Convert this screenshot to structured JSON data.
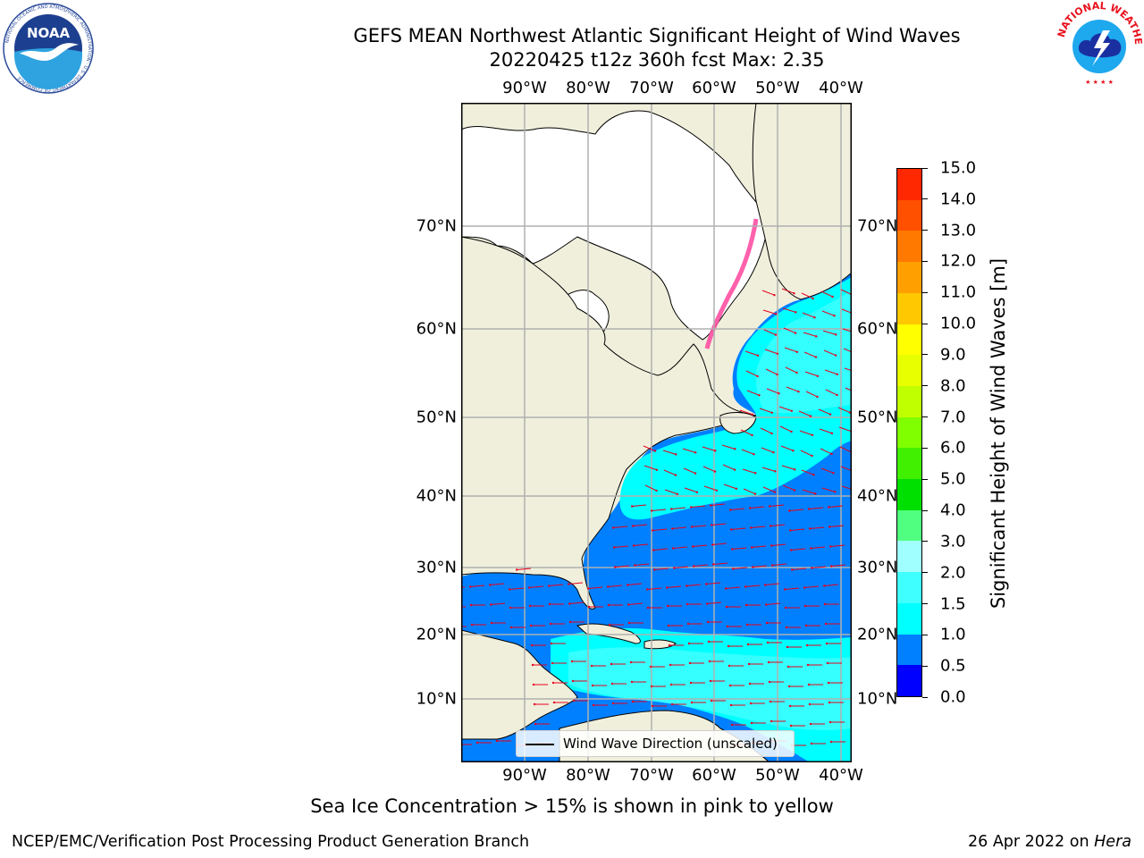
{
  "title": {
    "line1": "GEFS MEAN Northwest Atlantic Significant Height of Wind Waves",
    "line2": "20220425 t12z 360h fcst   Max: 2.35"
  },
  "longitude_labels": [
    "90°W",
    "80°W",
    "70°W",
    "60°W",
    "50°W",
    "40°W"
  ],
  "latitude_labels": [
    "70°N",
    "60°N",
    "50°N",
    "40°N",
    "30°N",
    "20°N",
    "10°N"
  ],
  "colorbar": {
    "label": "Significant Height of Wind Waves [m]",
    "tick_labels": [
      "0.0",
      "0.5",
      "1.0",
      "1.5",
      "2.0",
      "3.0",
      "4.0",
      "5.0",
      "6.0",
      "7.0",
      "8.0",
      "9.0",
      "10.0",
      "11.0",
      "12.0",
      "13.0",
      "14.0",
      "15.0"
    ],
    "colors": [
      "#0000ff",
      "#0080ff",
      "#00ffff",
      "#40ffff",
      "#a0ffff",
      "#50ff80",
      "#00e000",
      "#40f000",
      "#80ff00",
      "#c0ff00",
      "#e8ff00",
      "#ffff00",
      "#ffc800",
      "#ffa000",
      "#ff7800",
      "#ff5000",
      "#ff2800",
      "#ff0000"
    ]
  },
  "legend": {
    "label": "Wind Wave Direction (unscaled)"
  },
  "ice_note": "Sea Ice Concentration > 15% is shown in pink to yellow",
  "footer": {
    "left": "NCEP/EMC/Verification Post Processing Product Generation Branch",
    "right_date": "26 Apr 2022 on",
    "right_host": "Hera"
  },
  "logos": {
    "noaa": "NOAA",
    "noaa_ring": "NATIONAL OCEANIC AND ATMOSPHERIC ADMINISTRATION · U.S. DEPARTMENT OF COMMERCE",
    "nws_ring": "NATIONAL WEATHER SERVICE"
  },
  "colors": {
    "land": "#efefdc",
    "ice_land": "#ffffff",
    "arrows": "#e8001c",
    "grid": "#b0b0b0"
  },
  "map_data": {
    "type": "wave-height-map",
    "units": "m",
    "max_value": 2.35,
    "lon_range": [
      -100,
      -38
    ],
    "lat_range": [
      2,
      80
    ]
  }
}
